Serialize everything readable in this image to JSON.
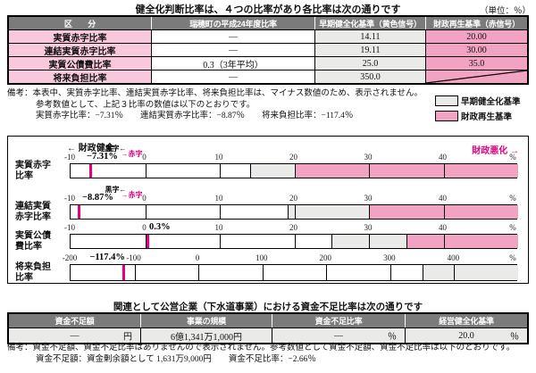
{
  "page": {
    "unit_note": "（単位：％）"
  },
  "colors": {
    "header_gray": "#7b7b7b",
    "row_label_pink": "#f8c9dc",
    "early_standard_gray": "#eaeae8",
    "reset_standard_pink": "#f2a2c3",
    "accent_magenta": "#e4007f"
  },
  "section1": {
    "title": "健全化判断比率は、４つの比率があり各比率は次の通りです",
    "table": {
      "headers": [
        "区　　分",
        "瑞穂町の平成24年度比率",
        "早期健全化基準（黄色信号）",
        "財政再生基準（赤信号）"
      ],
      "rows": [
        {
          "label": "実質赤字比率",
          "value": "―",
          "early": "14.11",
          "reset": "20.00"
        },
        {
          "label": "連結実質赤字比率",
          "value": "―",
          "early": "19.11",
          "reset": "30.00"
        },
        {
          "label": "実質公債費比率",
          "value": "0.3（3年平均）",
          "early": "25.0",
          "reset": "35.0"
        },
        {
          "label": "将来負担比率",
          "value": "―",
          "early": "350.0",
          "reset": ""
        }
      ]
    },
    "remarks": {
      "prefix": "備考：",
      "line1": "本表中、実質赤字比率、連結実質赤字比率、将来負担比率は、マイナス数値のため、表示されません。",
      "line2": "参考数値として、上記３比率の数値は以下のとおりです。",
      "line3": "実質赤字比率：−7.31％　　連結実質赤字比率：−8.87％　　将来負担比率：−117.4％"
    },
    "legend": [
      {
        "label": "早期健全化基準",
        "color": "#eaeae8"
      },
      {
        "label": "財政再生基準",
        "color": "#f2a2c3"
      }
    ]
  },
  "chart": {
    "left_note": "← 財政健全",
    "right_note": "財政悪化 →",
    "surplus_label": "黒字←",
    "deficit_label": "→赤字"
  },
  "chart_data": [
    {
      "type": "gauge-bar",
      "name": "実質赤字比率",
      "label_lines": [
        "実質赤字",
        "比率"
      ],
      "axis_min": -10,
      "axis_max": 50,
      "ticks": [
        -10,
        0,
        10,
        20,
        30,
        40
      ],
      "unit": "%",
      "value": -7.31,
      "value_label": "−7.31%",
      "early_standard": 14.11,
      "reset_standard": 20,
      "show_surplus_deficit": true
    },
    {
      "type": "gauge-bar",
      "name": "連結実質赤字比率",
      "label_lines": [
        "連結実質",
        "赤字比率"
      ],
      "axis_min": -10,
      "axis_max": 50,
      "ticks": [
        -10,
        0,
        10,
        20,
        30,
        40
      ],
      "unit": "%",
      "value": -8.87,
      "value_label": "−8.87%",
      "early_standard": 19.11,
      "reset_standard": 30,
      "show_surplus_deficit": true
    },
    {
      "type": "gauge-bar",
      "name": "実質公債費比率",
      "label_lines": [
        "実質公債",
        "費比率"
      ],
      "axis_min": -10,
      "axis_max": 50,
      "ticks": [
        -10,
        0,
        10,
        20,
        30,
        40
      ],
      "unit": "%",
      "value": 0.3,
      "value_label": "0.3%",
      "early_standard": 25,
      "reset_standard": 35,
      "show_surplus_deficit": false
    },
    {
      "type": "gauge-bar",
      "name": "将来負担比率",
      "label_lines": [
        "将来負担",
        "比率"
      ],
      "axis_min": -200,
      "axis_max": 500,
      "ticks": [
        -200,
        -100,
        0,
        100,
        200,
        300,
        400
      ],
      "unit": "%",
      "value": -117.4,
      "value_label": "−117.4%",
      "early_standard": 350,
      "reset_standard": null,
      "show_surplus_deficit": false
    }
  ],
  "section2": {
    "title": "関連として公営企業（下水道事業）における資金不足比率は次の通りです",
    "table": {
      "headers": [
        "資金不足額",
        "事業の規模",
        "資金不足比率",
        "経営健全化基準"
      ],
      "row": {
        "shortfall": "―",
        "shortfall_unit": "円",
        "scale": "6億1,341万1,000円",
        "ratio": "―",
        "ratio_unit": "％",
        "standard": "20.0",
        "standard_unit": "％"
      }
    },
    "remarks": {
      "prefix": "備考：",
      "line1": "資金不足額、資金不足比率はありませんので表示されません。参考数値として資金不足額、資金不足比率は以下のとおりです。",
      "line2": "資金不足額：資金剰余額として 1,631万9,000円　　資金不足比率：−2.66％"
    }
  }
}
